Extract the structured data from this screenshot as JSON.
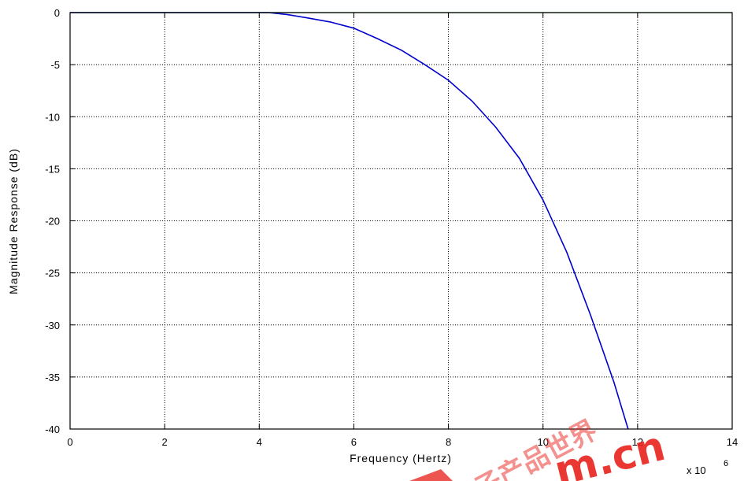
{
  "chart_data": {
    "type": "line",
    "title": "",
    "xlabel": "Frequency (Hertz)",
    "ylabel": "Magnitude Response (dB)",
    "x_scale_label": "x 10",
    "x_scale_exponent": "6",
    "xlim": [
      0,
      14
    ],
    "ylim": [
      -40,
      0
    ],
    "xticks": [
      0,
      2,
      4,
      6,
      8,
      10,
      12,
      14
    ],
    "yticks": [
      0,
      -5,
      -10,
      -15,
      -20,
      -25,
      -30,
      -35,
      -40
    ],
    "grid": true,
    "grid_style": "dotted",
    "series": [
      {
        "color": "#0000cc",
        "x": [
          0,
          4.2,
          4.6,
          5.0,
          5.5,
          6.0,
          6.5,
          7.0,
          7.5,
          8.0,
          8.5,
          9.0,
          9.5,
          10.0,
          10.5,
          11.0,
          11.5,
          11.8
        ],
        "y": [
          0,
          0,
          -0.2,
          -0.5,
          -0.9,
          -1.5,
          -2.5,
          -3.6,
          -5.0,
          -6.5,
          -8.5,
          -11.0,
          -14.0,
          -18.0,
          -23.0,
          -29.0,
          -35.5,
          -40.0
        ]
      },
      {
        "color": "#006600",
        "x": [
          0,
          14
        ],
        "y": [
          0,
          0
        ]
      }
    ]
  },
  "watermark": {
    "text": "m.cn",
    "chars": "子产品世界",
    "color": "#e8221b"
  }
}
